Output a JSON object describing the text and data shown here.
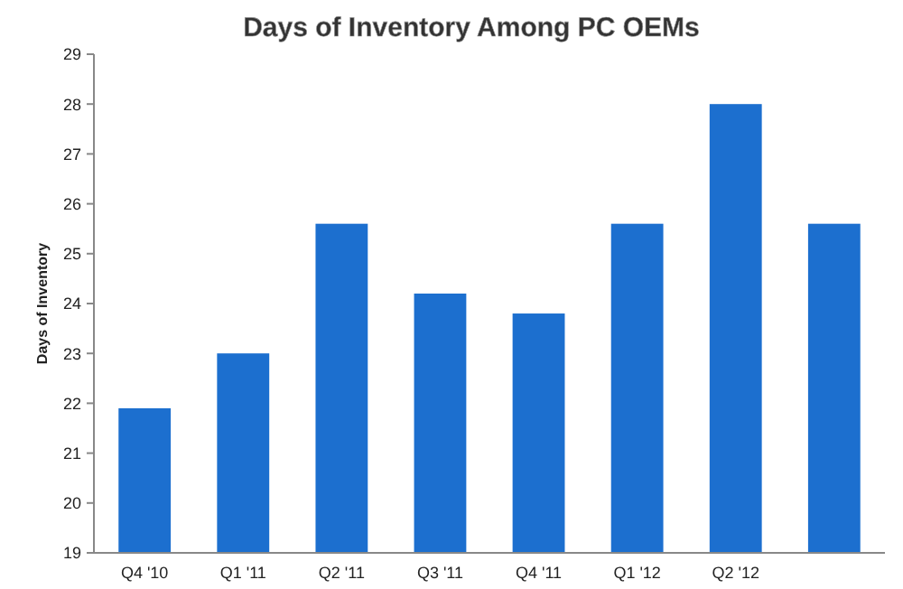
{
  "chart_data": {
    "type": "bar",
    "title": "Days of Inventory Among PC OEMs",
    "ylabel": "Days of Inventory",
    "categories": [
      "Q4 '10",
      "Q1 '11",
      "Q2 '11",
      "Q3 '11",
      "Q4 '11",
      "Q1 '12",
      "Q2 '12",
      null
    ],
    "values": [
      21.9,
      23.0,
      25.6,
      24.2,
      23.8,
      25.6,
      28.0,
      25.6
    ],
    "color": "#1c6fcf",
    "ylim": [
      19,
      29
    ],
    "yticks": [
      19,
      20,
      21,
      22,
      23,
      24,
      25,
      26,
      27,
      28,
      29
    ],
    "grid": false
  }
}
